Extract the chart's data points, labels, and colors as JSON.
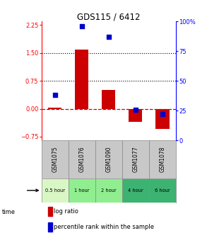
{
  "title": "GDS115 / 6412",
  "categories": [
    "GSM1075",
    "GSM1076",
    "GSM1090",
    "GSM1077",
    "GSM1078"
  ],
  "time_labels": [
    "0.5 hour",
    "1 hour",
    "2 hour",
    "4 hour",
    "6 hour"
  ],
  "time_colors": [
    "#d9f7c5",
    "#90ee90",
    "#90ee90",
    "#3cb371",
    "#3cb371"
  ],
  "log_ratio": [
    0.04,
    1.6,
    0.5,
    -0.35,
    -0.55
  ],
  "percentile_rank": [
    38,
    96,
    87,
    26,
    22
  ],
  "bar_color": "#cc0000",
  "dot_color": "#0000cc",
  "ylim_left": [
    -0.85,
    2.35
  ],
  "ylim_right": [
    0,
    100
  ],
  "yticks_left": [
    -0.75,
    0.0,
    0.75,
    1.5,
    2.25
  ],
  "yticks_right": [
    0,
    25,
    50,
    75,
    100
  ],
  "hline_y": [
    0.75,
    1.5
  ],
  "dashed_hline_y": 0.0,
  "background_color": "#ffffff",
  "plot_bg_color": "#ffffff",
  "gsm_bg": "#c8c8c8",
  "legend_log_ratio": "log ratio",
  "legend_percentile": "percentile rank within the sample"
}
